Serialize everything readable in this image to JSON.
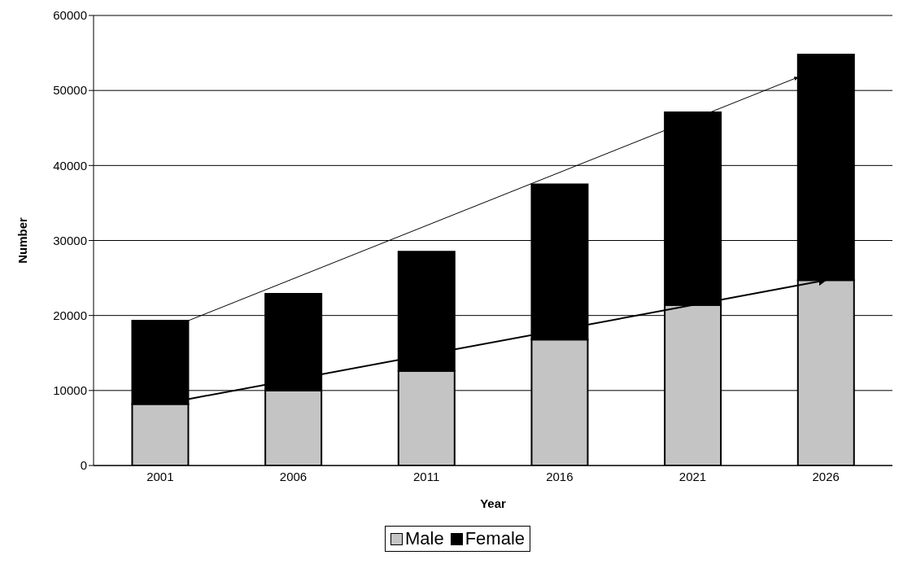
{
  "chart_data": {
    "type": "bar",
    "stacked": true,
    "xlabel": "Year",
    "ylabel": "Number",
    "categories": [
      "2001",
      "2006",
      "2011",
      "2016",
      "2021",
      "2026"
    ],
    "series": [
      {
        "name": "Male",
        "color": "#c4c4c4",
        "values": [
          8200,
          10000,
          12600,
          16800,
          21400,
          24700
        ]
      },
      {
        "name": "Female",
        "color": "#000000",
        "values": [
          11100,
          12900,
          15900,
          20700,
          25700,
          30100
        ]
      }
    ],
    "ylim": [
      0,
      60000
    ],
    "yticks": [
      0,
      10000,
      20000,
      30000,
      40000,
      50000,
      60000
    ],
    "grid": "y",
    "legend": "bottom"
  }
}
